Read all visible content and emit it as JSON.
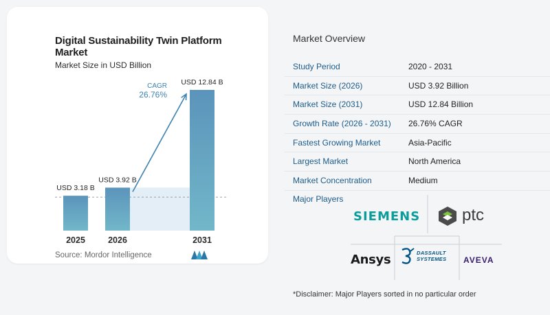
{
  "chart": {
    "title": "Digital Sustainability Twin Platform Market",
    "subtitle": "Market Size in USD Billion",
    "source": "Source:  Mordor Intelligence"
  },
  "chart_data": {
    "type": "bar",
    "title": "Digital Sustainability Twin Platform Market",
    "subtitle": "Market Size in USD Billion",
    "categories": [
      "2025",
      "2026",
      "2031"
    ],
    "values": [
      3.18,
      3.92,
      12.84
    ],
    "value_labels": [
      "USD 3.18 B",
      "USD 3.92 B",
      "USD 12.84 B"
    ],
    "cagr_label": "CAGR",
    "cagr_value": "26.76%",
    "ylim": [
      0,
      14
    ],
    "grid": false,
    "bar_color": "#5d9bbd",
    "highlight_color": "#e3eef6"
  },
  "overview": {
    "title": "Market Overview",
    "rows": [
      {
        "label": "Study Period",
        "value": "2020 - 2031"
      },
      {
        "label": "Market Size (2026)",
        "value": "USD 3.92 Billion"
      },
      {
        "label": "Market Size (2031)",
        "value": "USD 12.84 Billion"
      },
      {
        "label": "Growth Rate (2026 - 2031)",
        "value": "26.76% CAGR"
      },
      {
        "label": "Fastest Growing Market",
        "value": "Asia-Pacific"
      },
      {
        "label": "Largest Market",
        "value": "North America"
      },
      {
        "label": "Market Concentration",
        "value": "Medium"
      }
    ],
    "players_title": "Major Players",
    "players": {
      "siemens": "SIEMENS",
      "ptc": "ptc",
      "ansys": "Ansys",
      "dassault_1": "DASSAULT",
      "dassault_2": "SYSTEMES",
      "aveva": "AVEVA"
    },
    "disclaimer": "*Disclaimer: Major Players sorted in no particular order"
  }
}
